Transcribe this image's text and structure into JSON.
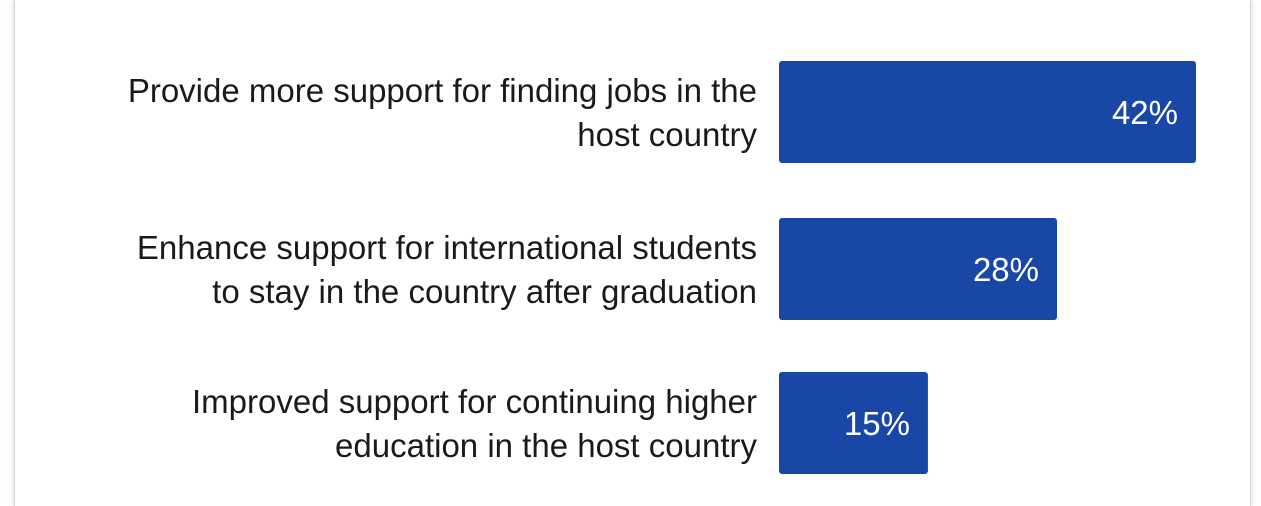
{
  "colors": {
    "bar": "#1847a8",
    "label_text": "#1a1a1a",
    "value_text": "#ffffff"
  },
  "chart_data": {
    "type": "bar",
    "orientation": "horizontal",
    "categories": [
      [
        "Provide more support for finding jobs in the",
        "host country"
      ],
      [
        "Enhance support for international students",
        "to stay in the country after graduation"
      ],
      [
        "Improved support for continuing higher",
        "education in the host country"
      ]
    ],
    "values": [
      42,
      28,
      15
    ],
    "value_labels": [
      "42%",
      "28%",
      "15%"
    ],
    "unit": "%",
    "xlim": [
      0,
      42
    ],
    "grid": false,
    "legend": "none"
  }
}
